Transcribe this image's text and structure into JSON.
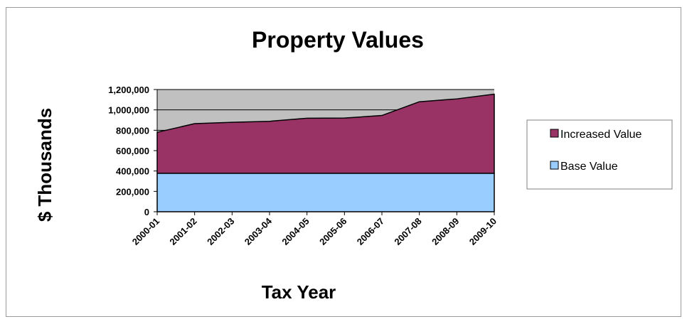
{
  "chart_data": {
    "type": "area",
    "stacked": true,
    "title": "Property Values",
    "xlabel": "Tax Year",
    "ylabel": "$ Thousands",
    "categories": [
      "2000-01",
      "2001-02",
      "2002-03",
      "2003-04",
      "2004-05",
      "2005-06",
      "2006-07",
      "2007-08",
      "2008-09",
      "2009-10"
    ],
    "series": [
      {
        "name": "Base Value",
        "color": "#99ccff",
        "values": [
          378000,
          378000,
          378000,
          378000,
          378000,
          378000,
          378000,
          378000,
          378000,
          378000
        ]
      },
      {
        "name": "Increased Value",
        "color": "#993366",
        "values": [
          402000,
          487000,
          500000,
          510000,
          540000,
          542000,
          567000,
          702000,
          730000,
          777000
        ]
      }
    ],
    "ylim": [
      0,
      1200000
    ],
    "yticks": [
      0,
      200000,
      400000,
      600000,
      800000,
      1000000,
      1200000
    ],
    "ytick_labels": [
      "0",
      "200,000",
      "400,000",
      "600,000",
      "800,000",
      "1,000,000",
      "1,200,000"
    ],
    "grid": true,
    "plot_background": "#c0c0c0",
    "legend_position": "right"
  }
}
